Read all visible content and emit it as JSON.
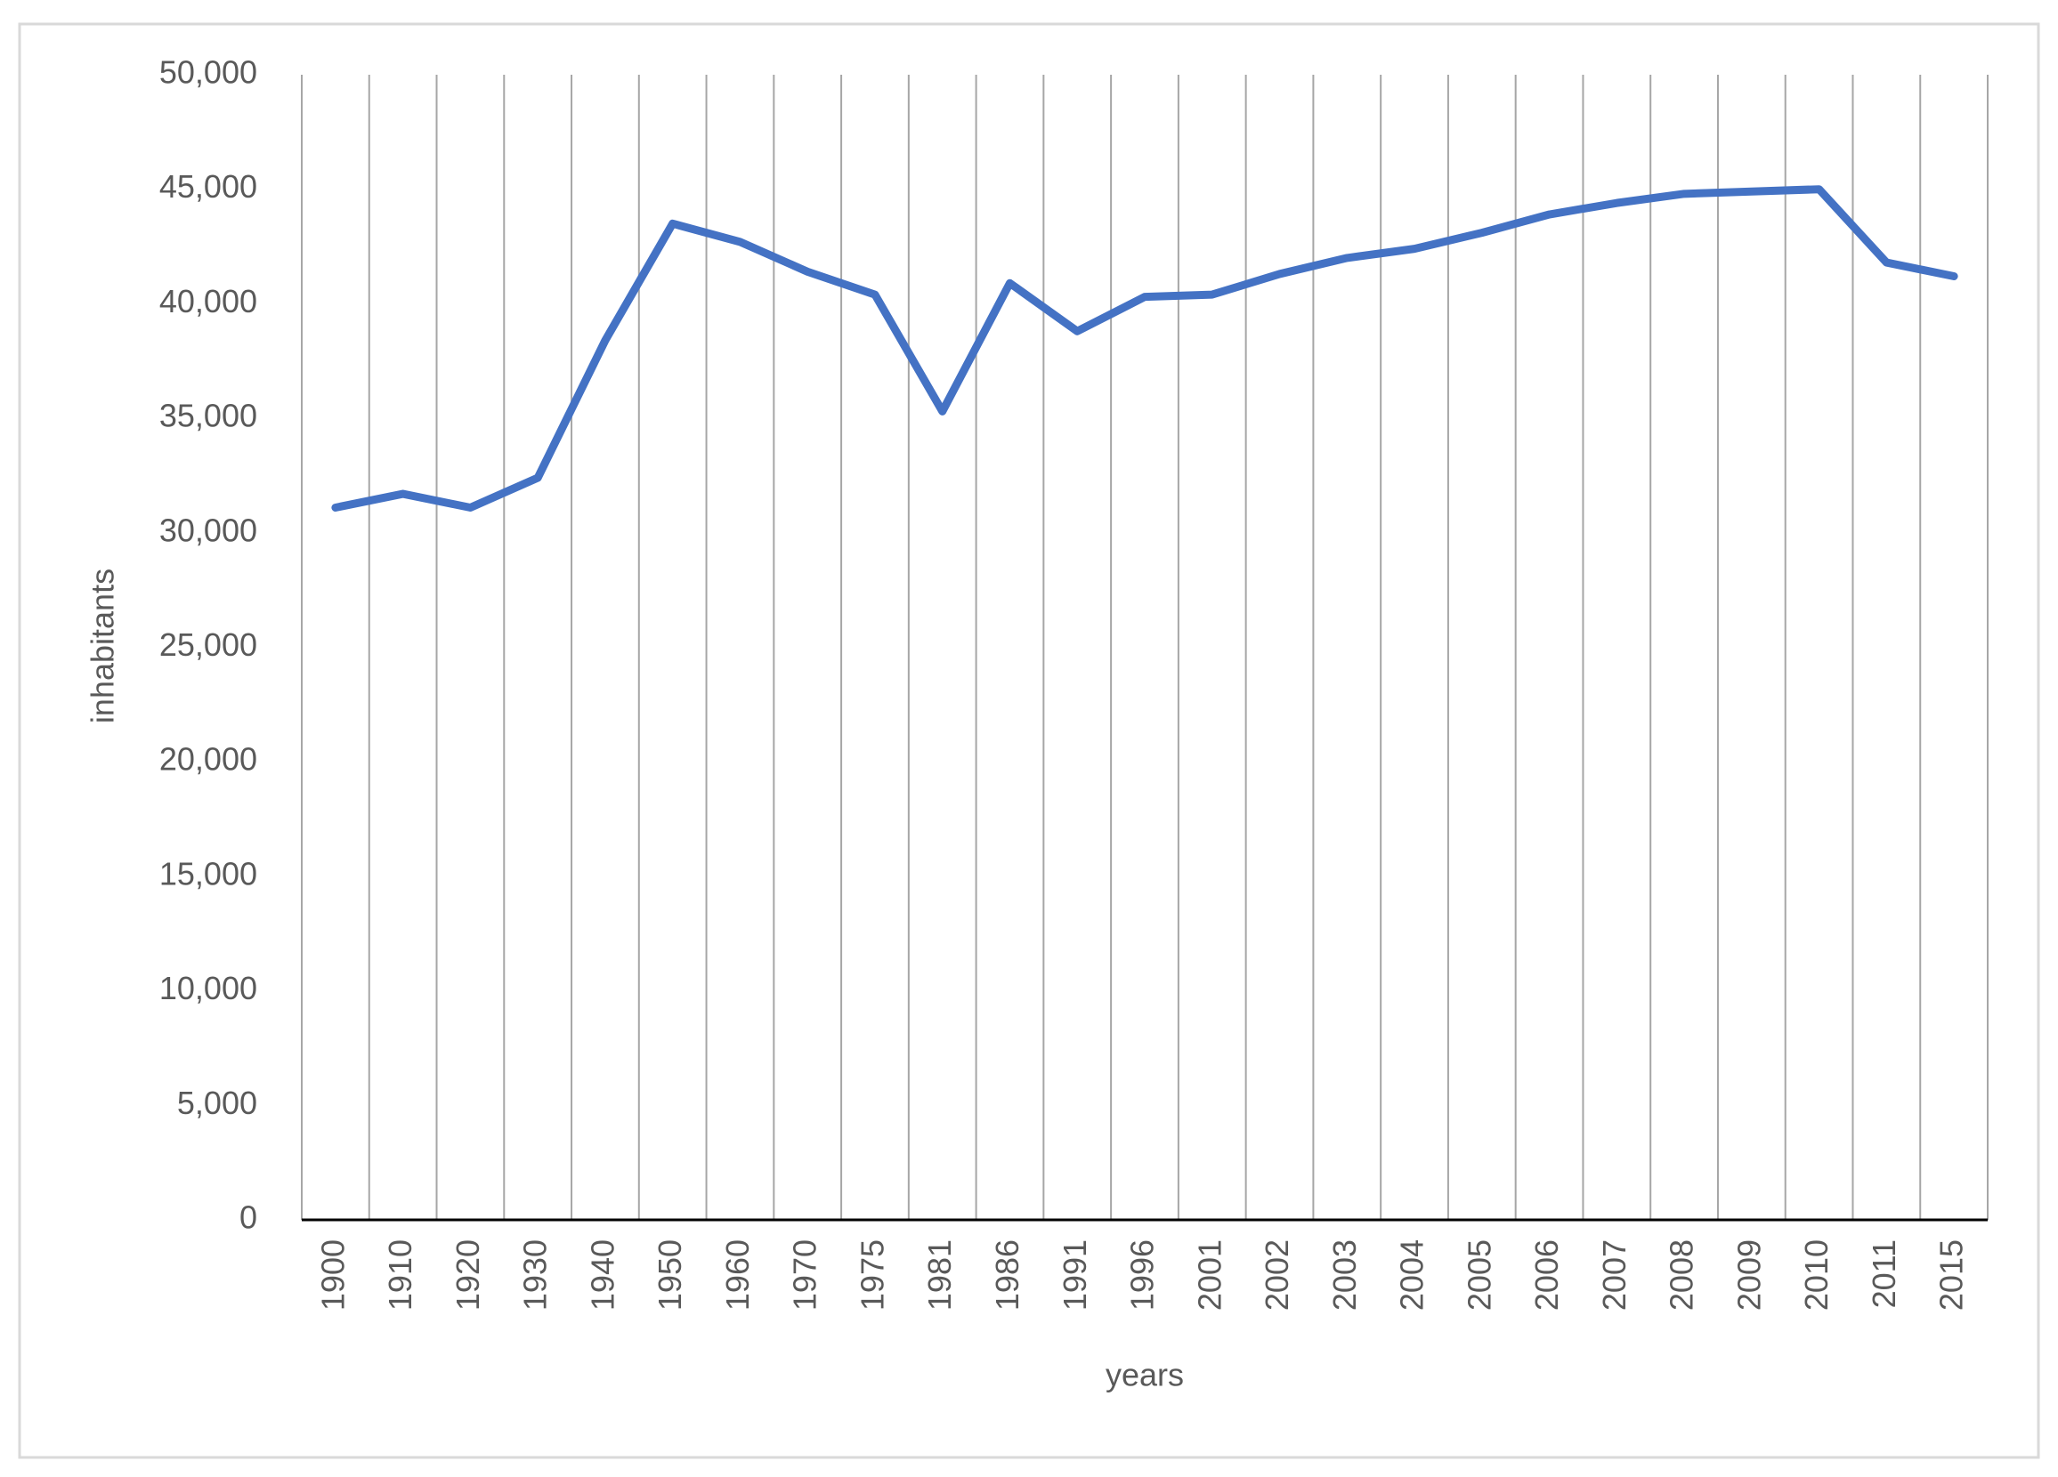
{
  "chart_data": {
    "type": "line",
    "x_label": "years",
    "y_label": "inhabitants",
    "categories": [
      "1900",
      "1910",
      "1920",
      "1930",
      "1940",
      "1950",
      "1960",
      "1970",
      "1975",
      "1981",
      "1986",
      "1991",
      "1996",
      "2001",
      "2002",
      "2003",
      "2004",
      "2005",
      "2006",
      "2007",
      "2008",
      "2009",
      "2010",
      "2011",
      "2015"
    ],
    "series": [
      {
        "name": "inhabitants",
        "color": "#4472c4",
        "values": [
          31100,
          31700,
          31100,
          32400,
          38400,
          43500,
          42700,
          41400,
          40400,
          35300,
          40900,
          38800,
          40300,
          40400,
          41300,
          42000,
          42400,
          43100,
          43900,
          44400,
          44800,
          44900,
          45000,
          41800,
          41200
        ]
      }
    ],
    "ylim": [
      0,
      50000
    ],
    "yticks": [
      0,
      {
        "value": 5000,
        "label": "5,000"
      },
      {
        "value": 10000,
        "label": "10,000"
      },
      {
        "value": 15000,
        "label": "15,000"
      },
      {
        "value": 20000,
        "label": "20,000"
      },
      {
        "value": 25000,
        "label": "25,000"
      },
      {
        "value": 30000,
        "label": "30,000"
      },
      {
        "value": 35000,
        "label": "35,000"
      },
      {
        "value": 40000,
        "label": "40,000"
      },
      {
        "value": 45000,
        "label": "45,000"
      },
      {
        "value": 50000,
        "label": "50,000"
      }
    ],
    "grid": "x"
  }
}
